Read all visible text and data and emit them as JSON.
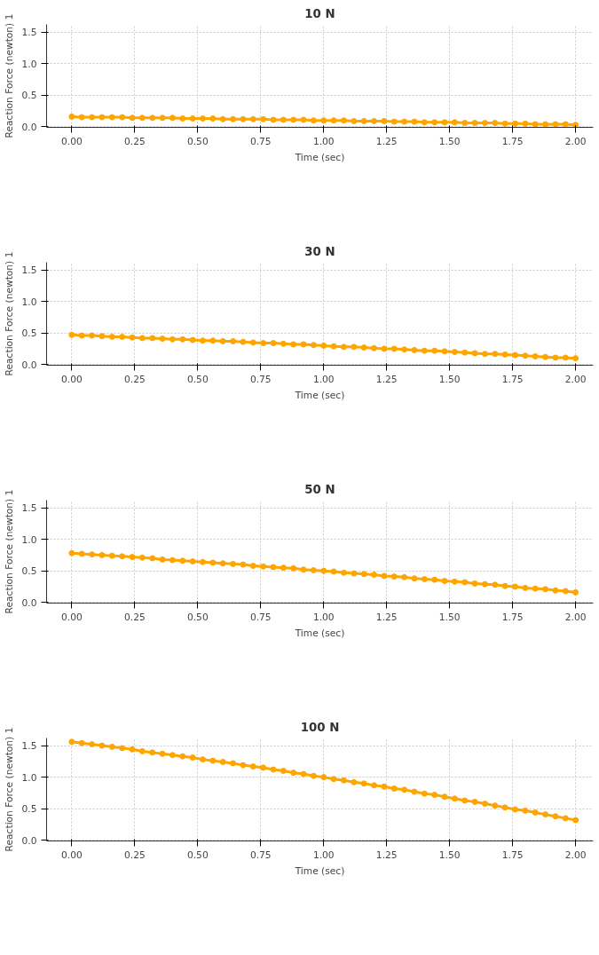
{
  "chart_data": [
    {
      "type": "line",
      "title": "10 N",
      "xlabel": "Time (sec)",
      "ylabel": "Reaction Force (newton) 1",
      "marker": "circle",
      "grid": true,
      "xlim": [
        -0.1,
        2.07
      ],
      "ylim": [
        -0.01,
        1.62
      ],
      "xticks": [
        {
          "value": 0,
          "label": "0.00"
        },
        {
          "value": 0.25,
          "label": "0.25"
        },
        {
          "value": 0.5,
          "label": "0.50"
        },
        {
          "value": 0.75,
          "label": "0.75"
        },
        {
          "value": 1,
          "label": "1.00"
        },
        {
          "value": 1.25,
          "label": "1.25"
        },
        {
          "value": 1.5,
          "label": "1.50"
        },
        {
          "value": 1.75,
          "label": "1.75"
        },
        {
          "value": 2,
          "label": "2.00"
        }
      ],
      "yticks": [
        {
          "value": 0,
          "label": "0.0"
        },
        {
          "value": 0.5,
          "label": "0.5"
        },
        {
          "value": 1,
          "label": "1.0"
        },
        {
          "value": 1.5,
          "label": "1.5"
        }
      ],
      "x": [
        0,
        0.04,
        0.08,
        0.12,
        0.16,
        0.2,
        0.24,
        0.28,
        0.32,
        0.36,
        0.4,
        0.44,
        0.48,
        0.52,
        0.56,
        0.6,
        0.64,
        0.68,
        0.72,
        0.76,
        0.8,
        0.84,
        0.88,
        0.92,
        0.96,
        1,
        1.04,
        1.08,
        1.12,
        1.16,
        1.2,
        1.24,
        1.28,
        1.32,
        1.36,
        1.4,
        1.44,
        1.48,
        1.52,
        1.56,
        1.6,
        1.64,
        1.68,
        1.72,
        1.76,
        1.8,
        1.84,
        1.88,
        1.92,
        1.96,
        2
      ],
      "series": [
        {
          "color": "#ffa500",
          "values": [
            0.16,
            0.15,
            0.15,
            0.15,
            0.15,
            0.15,
            0.14,
            0.14,
            0.14,
            0.14,
            0.14,
            0.13,
            0.13,
            0.13,
            0.13,
            0.12,
            0.12,
            0.12,
            0.12,
            0.12,
            0.11,
            0.11,
            0.11,
            0.11,
            0.1,
            0.1,
            0.1,
            0.1,
            0.09,
            0.09,
            0.09,
            0.09,
            0.08,
            0.08,
            0.08,
            0.07,
            0.07,
            0.07,
            0.07,
            0.06,
            0.06,
            0.06,
            0.06,
            0.05,
            0.05,
            0.05,
            0.04,
            0.04,
            0.04,
            0.04,
            0.03
          ]
        }
      ]
    },
    {
      "type": "line",
      "title": "30 N",
      "xlabel": "Time (sec)",
      "ylabel": "Reaction Force (newton) 1",
      "marker": "circle",
      "grid": true,
      "xlim": [
        -0.1,
        2.07
      ],
      "ylim": [
        -0.01,
        1.62
      ],
      "xticks": [
        {
          "value": 0,
          "label": "0.00"
        },
        {
          "value": 0.25,
          "label": "0.25"
        },
        {
          "value": 0.5,
          "label": "0.50"
        },
        {
          "value": 0.75,
          "label": "0.75"
        },
        {
          "value": 1,
          "label": "1.00"
        },
        {
          "value": 1.25,
          "label": "1.25"
        },
        {
          "value": 1.5,
          "label": "1.50"
        },
        {
          "value": 1.75,
          "label": "1.75"
        },
        {
          "value": 2,
          "label": "2.00"
        }
      ],
      "yticks": [
        {
          "value": 0,
          "label": "0.0"
        },
        {
          "value": 0.5,
          "label": "0.5"
        },
        {
          "value": 1,
          "label": "1.0"
        },
        {
          "value": 1.5,
          "label": "1.5"
        }
      ],
      "x": [
        0,
        0.04,
        0.08,
        0.12,
        0.16,
        0.2,
        0.24,
        0.28,
        0.32,
        0.36,
        0.4,
        0.44,
        0.48,
        0.52,
        0.56,
        0.6,
        0.64,
        0.68,
        0.72,
        0.76,
        0.8,
        0.84,
        0.88,
        0.92,
        0.96,
        1,
        1.04,
        1.08,
        1.12,
        1.16,
        1.2,
        1.24,
        1.28,
        1.32,
        1.36,
        1.4,
        1.44,
        1.48,
        1.52,
        1.56,
        1.6,
        1.64,
        1.68,
        1.72,
        1.76,
        1.8,
        1.84,
        1.88,
        1.92,
        1.96,
        2
      ],
      "series": [
        {
          "color": "#ffa500",
          "values": [
            0.47,
            0.46,
            0.46,
            0.45,
            0.44,
            0.44,
            0.43,
            0.42,
            0.42,
            0.41,
            0.4,
            0.4,
            0.39,
            0.38,
            0.38,
            0.37,
            0.37,
            0.36,
            0.35,
            0.34,
            0.34,
            0.33,
            0.32,
            0.32,
            0.31,
            0.3,
            0.29,
            0.28,
            0.28,
            0.27,
            0.26,
            0.25,
            0.25,
            0.24,
            0.23,
            0.22,
            0.22,
            0.21,
            0.2,
            0.19,
            0.18,
            0.17,
            0.17,
            0.16,
            0.15,
            0.14,
            0.13,
            0.12,
            0.11,
            0.11,
            0.1
          ]
        }
      ]
    },
    {
      "type": "line",
      "title": "50 N",
      "xlabel": "Time (sec)",
      "ylabel": "Reaction Force (newton) 1",
      "marker": "circle",
      "grid": true,
      "xlim": [
        -0.1,
        2.07
      ],
      "ylim": [
        -0.01,
        1.62
      ],
      "xticks": [
        {
          "value": 0,
          "label": "0.00"
        },
        {
          "value": 0.25,
          "label": "0.25"
        },
        {
          "value": 0.5,
          "label": "0.50"
        },
        {
          "value": 0.75,
          "label": "0.75"
        },
        {
          "value": 1,
          "label": "1.00"
        },
        {
          "value": 1.25,
          "label": "1.25"
        },
        {
          "value": 1.5,
          "label": "1.50"
        },
        {
          "value": 1.75,
          "label": "1.75"
        },
        {
          "value": 2,
          "label": "2.00"
        }
      ],
      "yticks": [
        {
          "value": 0,
          "label": "0.0"
        },
        {
          "value": 0.5,
          "label": "0.5"
        },
        {
          "value": 1,
          "label": "1.0"
        },
        {
          "value": 1.5,
          "label": "1.5"
        }
      ],
      "x": [
        0,
        0.04,
        0.08,
        0.12,
        0.16,
        0.2,
        0.24,
        0.28,
        0.32,
        0.36,
        0.4,
        0.44,
        0.48,
        0.52,
        0.56,
        0.6,
        0.64,
        0.68,
        0.72,
        0.76,
        0.8,
        0.84,
        0.88,
        0.92,
        0.96,
        1,
        1.04,
        1.08,
        1.12,
        1.16,
        1.2,
        1.24,
        1.28,
        1.32,
        1.36,
        1.4,
        1.44,
        1.48,
        1.52,
        1.56,
        1.6,
        1.64,
        1.68,
        1.72,
        1.76,
        1.8,
        1.84,
        1.88,
        1.92,
        1.96,
        2
      ],
      "series": [
        {
          "color": "#ffa500",
          "values": [
            0.78,
            0.77,
            0.76,
            0.75,
            0.74,
            0.73,
            0.72,
            0.71,
            0.7,
            0.68,
            0.67,
            0.66,
            0.65,
            0.64,
            0.63,
            0.62,
            0.61,
            0.6,
            0.58,
            0.57,
            0.56,
            0.55,
            0.54,
            0.52,
            0.51,
            0.5,
            0.49,
            0.47,
            0.46,
            0.45,
            0.44,
            0.42,
            0.41,
            0.4,
            0.38,
            0.37,
            0.36,
            0.34,
            0.33,
            0.32,
            0.3,
            0.29,
            0.28,
            0.26,
            0.25,
            0.23,
            0.22,
            0.21,
            0.19,
            0.18,
            0.16
          ]
        }
      ]
    },
    {
      "type": "line",
      "title": "100 N",
      "xlabel": "Time (sec)",
      "ylabel": "Reaction Force (newton) 1",
      "marker": "circle",
      "grid": true,
      "xlim": [
        -0.1,
        2.07
      ],
      "ylim": [
        -0.01,
        1.62
      ],
      "xticks": [
        {
          "value": 0,
          "label": "0.00"
        },
        {
          "value": 0.25,
          "label": "0.25"
        },
        {
          "value": 0.5,
          "label": "0.50"
        },
        {
          "value": 0.75,
          "label": "0.75"
        },
        {
          "value": 1,
          "label": "1.00"
        },
        {
          "value": 1.25,
          "label": "1.25"
        },
        {
          "value": 1.5,
          "label": "1.50"
        },
        {
          "value": 1.75,
          "label": "1.75"
        },
        {
          "value": 2,
          "label": "2.00"
        }
      ],
      "yticks": [
        {
          "value": 0,
          "label": "0.0"
        },
        {
          "value": 0.5,
          "label": "0.5"
        },
        {
          "value": 1,
          "label": "1.0"
        },
        {
          "value": 1.5,
          "label": "1.5"
        }
      ],
      "x": [
        0,
        0.04,
        0.08,
        0.12,
        0.16,
        0.2,
        0.24,
        0.28,
        0.32,
        0.36,
        0.4,
        0.44,
        0.48,
        0.52,
        0.56,
        0.6,
        0.64,
        0.68,
        0.72,
        0.76,
        0.8,
        0.84,
        0.88,
        0.92,
        0.96,
        1,
        1.04,
        1.08,
        1.12,
        1.16,
        1.2,
        1.24,
        1.28,
        1.32,
        1.36,
        1.4,
        1.44,
        1.48,
        1.52,
        1.56,
        1.6,
        1.64,
        1.68,
        1.72,
        1.76,
        1.8,
        1.84,
        1.88,
        1.92,
        1.96,
        2
      ],
      "series": [
        {
          "color": "#ffa500",
          "values": [
            1.56,
            1.54,
            1.52,
            1.5,
            1.48,
            1.46,
            1.44,
            1.41,
            1.39,
            1.37,
            1.35,
            1.33,
            1.31,
            1.28,
            1.26,
            1.24,
            1.22,
            1.19,
            1.17,
            1.15,
            1.12,
            1.1,
            1.07,
            1.05,
            1.02,
            1.0,
            0.97,
            0.95,
            0.92,
            0.9,
            0.87,
            0.85,
            0.82,
            0.8,
            0.77,
            0.74,
            0.72,
            0.69,
            0.66,
            0.63,
            0.61,
            0.58,
            0.55,
            0.52,
            0.49,
            0.47,
            0.44,
            0.41,
            0.38,
            0.35,
            0.32
          ]
        }
      ]
    }
  ]
}
